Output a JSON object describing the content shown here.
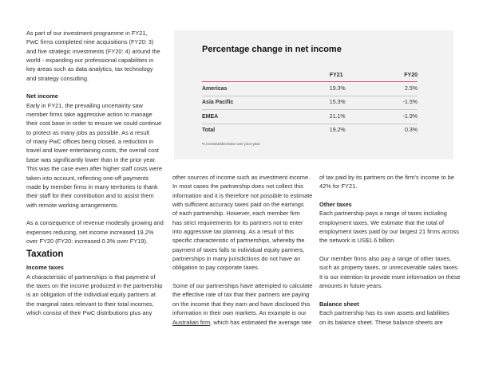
{
  "left_column": [
    {
      "type": "p",
      "lines": [
        "As part of our investment programme in FY21,",
        "PwC firms completed nine acquisitions (FY20: 3)",
        "and five strategic investments (FY20: 4) around the",
        "world - expanding our professional capabilities in",
        "key areas such as data analytics, tax technology",
        "and strategy consulting."
      ]
    },
    {
      "type": "gap"
    },
    {
      "type": "h",
      "lines": [
        "Net income"
      ]
    },
    {
      "type": "p",
      "lines": [
        "Early in FY21, the prevailing uncertainty saw",
        "member firms take aggressive action to manage",
        "their cost base in order to ensure we could continue",
        "to protect as many jobs as possible. As a result",
        "of many PwC offices being closed, a reduction in",
        "travel and lower entertaining costs, the overall cost",
        "base was significantly lower than in the prior year.",
        "This was the case even after higher staff costs were",
        "taken into account, reflecting one-off payments",
        "made by member firms in many territories to thank",
        "their staff for their contribution and to assist them",
        "with remote working arrangements."
      ]
    },
    {
      "type": "gap"
    },
    {
      "type": "p",
      "lines": [
        "As a consequence of revenue modestly growing and",
        "expenses reducing, net income increased 19.2%",
        "over FY20 (FY20: increased 0.3% over FY19)."
      ]
    },
    {
      "type": "h2",
      "lines": [
        "Taxation"
      ]
    },
    {
      "type": "h",
      "lines": [
        "Income taxes"
      ]
    },
    {
      "type": "p",
      "lines": [
        "A characteristic of partnerships is that payment of",
        "the taxes on the income produced in the partnership",
        "is an obligation of the individual equity partners at",
        "the marginal rates relevant to their total incomes,",
        "which consist of their PwC distributions plus any"
      ]
    }
  ],
  "middle_column": [
    {
      "type": "p",
      "lines": [
        "other sources of income such as investment income.",
        "In most cases the partnership does not collect this",
        "information and it is therefore not possible to estimate",
        "with sufficient accuracy taxes paid on the earnings",
        "of each partnership. However, each member firm",
        "has strict requirements for its partners not to enter",
        "into aggressive tax planning. As a result of this",
        "specific characteristic of partnerships, whereby the",
        "payment of taxes falls to individual equity partners,",
        "partnerships in many jurisdictions do not have an",
        "obligation to pay corporate taxes."
      ]
    },
    {
      "type": "gap"
    },
    {
      "type": "p",
      "lines": [
        "Some of our partnerships have attempted to calculate",
        "the effective rate of tax that their partners are paying",
        "on the income that they earn and have disclosed this",
        "information in their own markets. An example is our"
      ]
    },
    {
      "type": "linkline",
      "link": "Australian firm",
      "rest": ", which has estimated the average rate"
    }
  ],
  "right_column": [
    {
      "type": "p",
      "lines": [
        "of tax paid by its partners on the firm's income to be",
        "42% for FY21."
      ]
    },
    {
      "type": "gap"
    },
    {
      "type": "h",
      "lines": [
        "Other taxes"
      ]
    },
    {
      "type": "p",
      "lines": [
        "Each partnership pays a range of taxes including",
        "employment taxes. We estimate that the total of",
        "employment taxes paid by our largest 21 firms across",
        "the network is US$1.6 billion."
      ]
    },
    {
      "type": "gap"
    },
    {
      "type": "p",
      "lines": [
        "Our member firms also pay a range of other taxes,",
        "such as property taxes, or unrecoverable sales taxes.",
        "It is our intention to provide more information on these",
        "amounts in future years."
      ]
    },
    {
      "type": "gap"
    },
    {
      "type": "h",
      "lines": [
        "Balance sheet"
      ]
    },
    {
      "type": "p",
      "lines": [
        "Each partnership has its own assets and liabilities",
        "on its balance sheet. These balance sheets are"
      ]
    }
  ],
  "table": {
    "title": "Percentage change in net income",
    "headers": [
      "",
      "FY21",
      "FY20"
    ],
    "rows": [
      [
        "Americas",
        "19.3%",
        "2.5%"
      ],
      [
        "Asia Pacific",
        "15.3%",
        "-1.5%"
      ],
      [
        "EMEA",
        "21.1%",
        "-1.9%"
      ],
      [
        "Total",
        "19.2%",
        "0.3%"
      ]
    ],
    "footnote": "% increase/decrease over prior year",
    "accent_color": "#d9486b"
  }
}
